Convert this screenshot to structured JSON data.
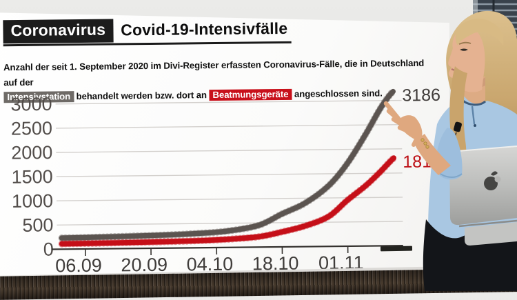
{
  "header": {
    "kicker": "Coronavirus",
    "title": "Covid-19-Intensivfälle"
  },
  "description": {
    "parts": [
      {
        "t": "Anzahl der seit 1. September 2020 im Divi-Register erfassten Coronavirus-Fälle, die in Deutschland auf der"
      },
      {
        "br": true
      },
      {
        "t": "Intensivstation",
        "badge": "gray"
      },
      {
        "t": " behandelt werden bzw. dort an "
      },
      {
        "t": "Beatmungsgeräte",
        "badge": "red"
      },
      {
        "t": " angeschlossen sind."
      }
    ],
    "badge_colors": {
      "gray": "#6e6a66",
      "red": "#c8101a"
    }
  },
  "chart_data": {
    "type": "line",
    "title": "Covid-19-Intensivfälle",
    "x_axis": {
      "tick_labels": [
        "06.09",
        "20.09",
        "04.10",
        "18.10",
        "01.11"
      ],
      "tick_days": [
        5,
        19,
        33,
        47,
        61
      ]
    },
    "y_axis": {
      "ticks": [
        0,
        500,
        1000,
        1500,
        2000,
        2500,
        3000
      ],
      "max": 3186
    },
    "grid": true,
    "legend": "none",
    "series": [
      {
        "name": "Intensivstation",
        "color": "#5b5450",
        "label_color": "#403c3a",
        "end_label": "3186",
        "end_value": 3186,
        "points": [
          [
            0,
            230
          ],
          [
            7,
            240
          ],
          [
            14,
            253
          ],
          [
            21,
            268
          ],
          [
            28,
            292
          ],
          [
            35,
            335
          ],
          [
            42,
            450
          ],
          [
            47,
            680
          ],
          [
            52,
            900
          ],
          [
            57,
            1250
          ],
          [
            61,
            1700
          ],
          [
            65,
            2300
          ],
          [
            68,
            2800
          ],
          [
            70,
            3080
          ],
          [
            71,
            3186
          ]
        ]
      },
      {
        "name": "Beatmungsgeräte",
        "color": "#c50f18",
        "label_color": "#bd1016",
        "end_label": "1813",
        "end_value": 1813,
        "points": [
          [
            0,
            110
          ],
          [
            7,
            115
          ],
          [
            14,
            122
          ],
          [
            21,
            131
          ],
          [
            28,
            143
          ],
          [
            35,
            167
          ],
          [
            42,
            215
          ],
          [
            47,
            310
          ],
          [
            52,
            430
          ],
          [
            57,
            620
          ],
          [
            61,
            950
          ],
          [
            65,
            1250
          ],
          [
            68,
            1520
          ],
          [
            70,
            1720
          ],
          [
            71,
            1813
          ]
        ]
      }
    ]
  }
}
